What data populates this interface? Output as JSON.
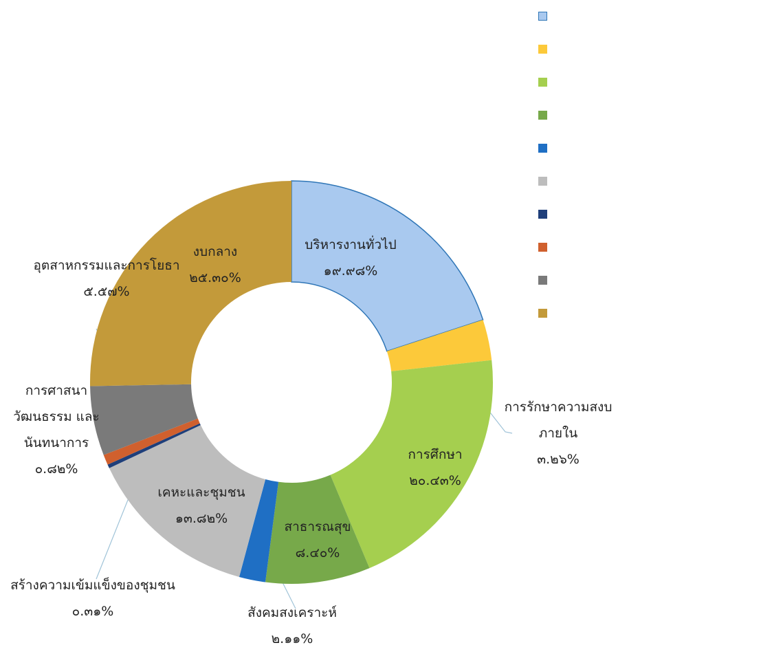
{
  "chart_data": {
    "type": "donut",
    "categories": [
      "บริหารงานทั่วไป",
      "การรักษาความสงบภายใน",
      "การศึกษา",
      "สาธารณสุข",
      "สังคมสงเคราะห์",
      "เคหะและชุมชน",
      "สร้างความเข้มแข็งของชุมชน",
      "การศาสนา วัฒนธรรม และนันทนาการ",
      "อุตสาหกรรมและการโยธา",
      "งบกลาง"
    ],
    "values": [
      19.98,
      3.26,
      20.43,
      8.4,
      2.11,
      13.82,
      0.31,
      0.82,
      5.57,
      25.3
    ],
    "value_labels": [
      "๑๙.๙๘%",
      "๓.๒๖%",
      "๒๐.๔๓%",
      "๘.๔๐%",
      "๒.๑๑%",
      "๑๓.๘๒%",
      "๐.๓๑%",
      "๐.๘๒%",
      "๕.๕๗%",
      "๒๕.๓๐%"
    ],
    "colors": [
      "#a9c9ef",
      "#fcc93a",
      "#a5cf4f",
      "#77a94a",
      "#1f6fc4",
      "#bdbdbd",
      "#1f3f7a",
      "#d0602e",
      "#7a7a7a",
      "#c39a3a"
    ],
    "legend": "top-right"
  }
}
